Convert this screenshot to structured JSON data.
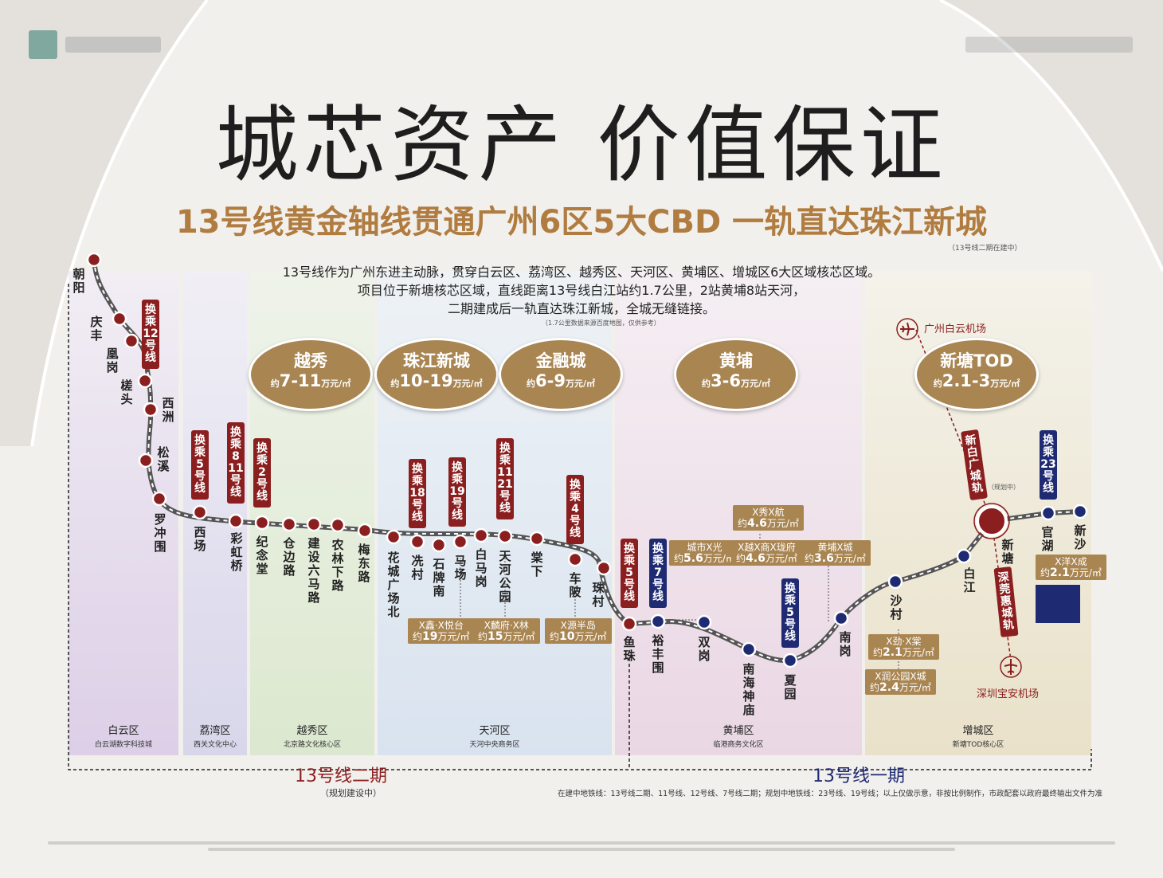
{
  "title": "城芯资产 价值保证",
  "subtitle": "13号线黄金轴线贯通广州6区5大CBD 一轨直达珠江新城",
  "subtitle_note": "（13号线二期在建中）",
  "intro": [
    "13号线作为广州东进主动脉，贯穿白云区、荔湾区、越秀区、天河区、黄埔区、增城区6大区域核芯区域。",
    "项目位于新塘核芯区域，直线距离13号线白江站约1.7公里，2站黄埔8站天河，",
    "二期建成后一轨直达珠江新城，全城无缝链接。"
  ],
  "intro_note": "（1.7公里数据来源百度地图，仅供参考）",
  "districts": [
    {
      "name": "白云区",
      "sub": "白云湖数字科技城"
    },
    {
      "name": "荔湾区",
      "sub": "西关文化中心"
    },
    {
      "name": "越秀区",
      "sub": "北京路文化核心区"
    },
    {
      "name": "天河区",
      "sub": "天河中央商务区"
    },
    {
      "name": "黄埔区",
      "sub": "临港商务文化区"
    },
    {
      "name": "增城区",
      "sub": "新塘TOD核心区"
    }
  ],
  "ovals": [
    {
      "name": "越秀",
      "pre": "约",
      "price": "7-11",
      "unit": "万元/㎡"
    },
    {
      "name": "珠江新城",
      "pre": "约",
      "price": "10-19",
      "unit": "万元/㎡"
    },
    {
      "name": "金融城",
      "pre": "约",
      "price": "6-9",
      "unit": "万元/㎡"
    },
    {
      "name": "黄埔",
      "pre": "约",
      "price": "3-6",
      "unit": "万元/㎡"
    },
    {
      "name": "新塘TOD",
      "pre": "约",
      "price": "2.1-3",
      "unit": "万元/㎡"
    }
  ],
  "stations": [
    "朝阳",
    "庆丰",
    "凰岗",
    "槎头",
    "西洲",
    "松溪",
    "罗冲围",
    "西场",
    "彩虹桥",
    "纪念堂",
    "仓边路",
    "建设六马路",
    "农林下路",
    "梅东路",
    "花城广场北",
    "冼村",
    "石牌南",
    "马场",
    "白马岗",
    "天河公园",
    "棠下",
    "车陂",
    "珠村",
    "鱼珠",
    "裕丰围",
    "双岗",
    "南海神庙",
    "夏园",
    "南岗",
    "沙村",
    "白江",
    "新塘",
    "官湖",
    "新沙"
  ],
  "transfers": [
    "换乘12号线",
    "换乘5号线",
    "换乘8 11号线",
    "换乘2号线",
    "换乘18号线",
    "换乘19号线",
    "换乘11 21号线",
    "换乘4号线",
    "换乘5号线",
    "换乘7号线",
    "换乘5号线",
    "换乘23号线",
    "新白广城轨",
    "深莞惠城轨"
  ],
  "transfer_note": "（规划中）",
  "price_boxes": [
    {
      "name": "X鑫·X悦台",
      "pre": "约",
      "price": "19",
      "unit": "万元/㎡"
    },
    {
      "name": "X麟府·X林",
      "pre": "约",
      "price": "15",
      "unit": "万元/㎡"
    },
    {
      "name": "X源半岛",
      "pre": "约",
      "price": "10",
      "unit": "万元/㎡"
    },
    {
      "name": "城市X光",
      "pre": "约",
      "price": "5.6",
      "unit": "万元/㎡"
    },
    {
      "name": "X秀X航",
      "pre": "约",
      "price": "4.6",
      "unit": "万元/㎡"
    },
    {
      "name": "X越X商X珑府",
      "pre": "约",
      "price": "4.6",
      "unit": "万元/㎡"
    },
    {
      "name": "黄埔X城",
      "pre": "约",
      "price": "3.6",
      "unit": "万元/㎡"
    },
    {
      "name": "X劲·X棠",
      "pre": "约",
      "price": "2.1",
      "unit": "万元/㎡"
    },
    {
      "name": "X润公园X城",
      "pre": "约",
      "price": "2.4",
      "unit": "万元/㎡"
    },
    {
      "name": "X洋X成",
      "pre": "约",
      "price": "2.1",
      "unit": "万元/㎡"
    }
  ],
  "airports": [
    "广州白云机场",
    "深圳宝安机场"
  ],
  "phases": [
    {
      "name": "13号线二期",
      "sub": "（规划建设中）"
    },
    {
      "name": "13号线一期"
    }
  ],
  "legend_note": "在建中地铁线：13号线二期、11号线、12号线、7号线二期；规划中地铁线：23号线、19号线；以上仅做示意，非按比例制作，市政配套以政府最终输出文件为准",
  "colors": {
    "accent_gold": "#a98552",
    "title_gold": "#b07c40",
    "line_red": "#8b1f1f",
    "line_blue": "#1e2a72"
  }
}
